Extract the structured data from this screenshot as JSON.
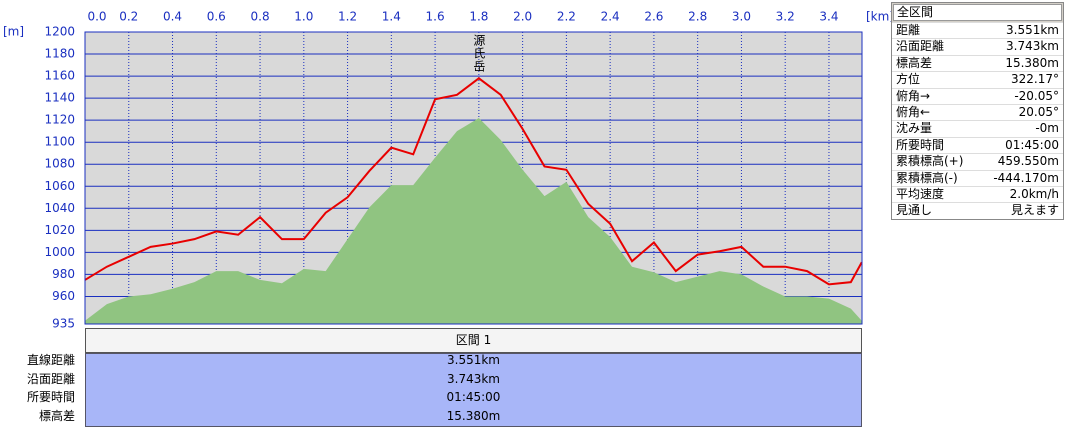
{
  "chart_data": {
    "type": "line",
    "xlabel": "[km]",
    "ylabel": "[m]",
    "x": [
      0,
      0.1,
      0.2,
      0.3,
      0.4,
      0.5,
      0.6,
      0.7,
      0.8,
      0.9,
      1.0,
      1.1,
      1.2,
      1.3,
      1.4,
      1.5,
      1.6,
      1.7,
      1.8,
      1.9,
      2.0,
      2.1,
      2.2,
      2.3,
      2.4,
      2.5,
      2.6,
      2.7,
      2.8,
      2.9,
      3.0,
      3.1,
      3.2,
      3.3,
      3.4,
      3.5,
      3.55
    ],
    "series": [
      {
        "kind": "area",
        "color": "#90c481",
        "values": [
          938,
          953,
          960,
          962,
          967,
          973,
          983,
          983,
          975,
          972,
          985,
          983,
          1012,
          1041,
          1061,
          1061,
          1086,
          1110,
          1122,
          1102,
          1075,
          1051,
          1064,
          1032,
          1014,
          987,
          982,
          973,
          978,
          983,
          980,
          969,
          960,
          960,
          958,
          949,
          938
        ]
      },
      {
        "kind": "line",
        "color": "#e80000",
        "values": [
          975,
          987,
          996,
          1005,
          1008,
          1012,
          1019,
          1016,
          1032,
          1012,
          1012,
          1036,
          1050,
          1074,
          1095,
          1089,
          1139,
          1143,
          1158,
          1143,
          1112,
          1078,
          1075,
          1044,
          1026,
          992,
          1009,
          983,
          998,
          1001,
          1005,
          987,
          987,
          983,
          971,
          973,
          991
        ]
      }
    ],
    "annotations": [
      {
        "text": "源氏岳",
        "x": 1.8
      }
    ],
    "xlim": [
      0,
      3.551
    ],
    "ylim": [
      935,
      1200
    ],
    "xticks": [
      {
        "value": 0,
        "label": "0.0"
      },
      0.2,
      0.4,
      0.6,
      0.8,
      {
        "value": 1,
        "label": "1.0"
      },
      1.2,
      1.4,
      1.6,
      1.8,
      {
        "value": 2,
        "label": "2.0"
      },
      2.2,
      2.4,
      2.6,
      2.8,
      {
        "value": 3,
        "label": "3.0"
      },
      3.2,
      3.4
    ],
    "yticks": [
      935,
      960,
      980,
      1000,
      1020,
      1040,
      1060,
      1080,
      1100,
      1120,
      1140,
      1160,
      1180,
      1200
    ],
    "grid": true
  },
  "section_table": {
    "header": "区間 1",
    "rows": [
      [
        "直線距離",
        "3.551km"
      ],
      [
        "沿面距離",
        "3.743km"
      ],
      [
        "所要時間",
        "01:45:00"
      ],
      [
        "標高差",
        "15.380m"
      ]
    ]
  },
  "summary_panel": {
    "title": "全区間",
    "rows": [
      [
        "距離",
        "3.551km"
      ],
      [
        "沿面距離",
        "3.743km"
      ],
      [
        "標高差",
        "15.380m"
      ],
      [
        "方位",
        "322.17°"
      ],
      [
        "俯角→",
        "-20.05°"
      ],
      [
        "俯角←",
        "20.05°"
      ],
      [
        "沈み量",
        "-0m"
      ],
      [
        "所要時間",
        "01:45:00"
      ],
      [
        "累積標高(+)",
        "459.550m"
      ],
      [
        "累積標高(-)",
        "-444.170m"
      ],
      [
        "平均速度",
        "2.0km/h"
      ],
      [
        "見通し",
        "見えます"
      ]
    ]
  }
}
